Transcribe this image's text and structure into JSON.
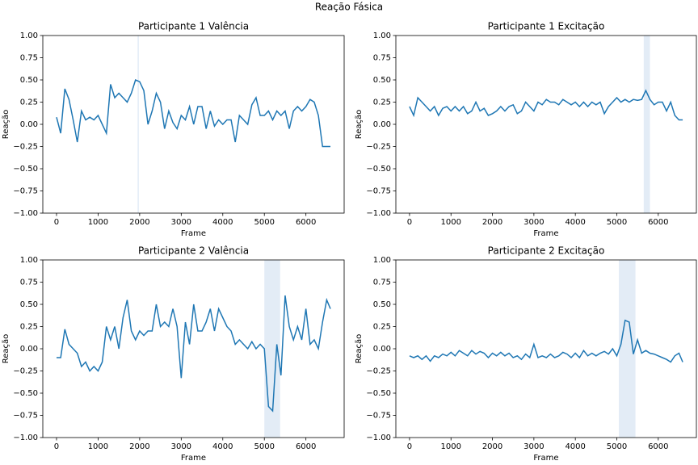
{
  "title": "Reação Fásica",
  "chart_data": [
    {
      "type": "line",
      "title": "Participante 1 Valência",
      "xlabel": "Frame",
      "ylabel": "Reação",
      "xlim": [
        -330,
        6920
      ],
      "xticks": [
        0,
        1000,
        2000,
        3000,
        4000,
        5000,
        6000
      ],
      "ylim": [
        -1,
        1
      ],
      "yticks": [
        {
          "value": -1,
          "label": "−1.00"
        },
        {
          "value": -0.75,
          "label": "−0.75"
        },
        {
          "value": -0.5,
          "label": "−0.50"
        },
        {
          "value": -0.25,
          "label": "−0.25"
        },
        {
          "value": 0,
          "label": "0.00"
        },
        {
          "value": 0.25,
          "label": "0.25"
        },
        {
          "value": 0.5,
          "label": "0.50"
        },
        {
          "value": 0.75,
          "label": "0.75"
        },
        {
          "value": 1,
          "label": "1.00"
        }
      ],
      "span": [
        1950,
        1980
      ],
      "span_color": "#e3ecf6",
      "color": "#1f77b4",
      "x": [
        0,
        100,
        200,
        300,
        400,
        500,
        600,
        700,
        800,
        900,
        1000,
        1100,
        1200,
        1300,
        1400,
        1500,
        1600,
        1700,
        1800,
        1900,
        2000,
        2100,
        2200,
        2300,
        2400,
        2500,
        2600,
        2700,
        2800,
        2900,
        3000,
        3100,
        3200,
        3300,
        3400,
        3500,
        3600,
        3700,
        3800,
        3900,
        4000,
        4100,
        4200,
        4300,
        4400,
        4500,
        4600,
        4700,
        4800,
        4900,
        5000,
        5100,
        5200,
        5300,
        5400,
        5500,
        5600,
        5700,
        5800,
        5900,
        6000,
        6100,
        6200,
        6300,
        6400,
        6500,
        6590
      ],
      "values": [
        0.08,
        -0.1,
        0.4,
        0.28,
        0.05,
        -0.2,
        0.15,
        0.05,
        0.08,
        0.05,
        0.1,
        0.0,
        -0.1,
        0.45,
        0.3,
        0.35,
        0.3,
        0.25,
        0.35,
        0.5,
        0.48,
        0.38,
        0.0,
        0.15,
        0.35,
        0.25,
        -0.05,
        0.15,
        0.02,
        -0.05,
        0.1,
        0.05,
        0.2,
        0.0,
        0.2,
        0.2,
        -0.05,
        0.15,
        -0.02,
        0.05,
        0.0,
        0.05,
        0.05,
        -0.2,
        0.1,
        0.05,
        0.0,
        0.22,
        0.3,
        0.1,
        0.1,
        0.15,
        0.05,
        0.15,
        0.1,
        0.15,
        -0.05,
        0.15,
        0.2,
        0.15,
        0.2,
        0.28,
        0.25,
        0.1,
        -0.25,
        -0.25,
        -0.25
      ]
    },
    {
      "type": "line",
      "title": "Participante 1 Excitação",
      "xlabel": "Frame",
      "ylabel": "Reação",
      "xlim": [
        -330,
        6920
      ],
      "xticks": [
        0,
        1000,
        2000,
        3000,
        4000,
        5000,
        6000
      ],
      "ylim": [
        -1,
        1
      ],
      "yticks": [
        {
          "value": -1,
          "label": "−1.00"
        },
        {
          "value": -0.75,
          "label": "−0.75"
        },
        {
          "value": -0.5,
          "label": "−0.50"
        },
        {
          "value": -0.25,
          "label": "−0.25"
        },
        {
          "value": 0,
          "label": "0.00"
        },
        {
          "value": 0.25,
          "label": "0.25"
        },
        {
          "value": 0.5,
          "label": "0.50"
        },
        {
          "value": 0.75,
          "label": "0.75"
        },
        {
          "value": 1,
          "label": "1.00"
        }
      ],
      "span": [
        5650,
        5800
      ],
      "span_color": "#e3ecf6",
      "color": "#1f77b4",
      "x": [
        0,
        100,
        200,
        300,
        400,
        500,
        600,
        700,
        800,
        900,
        1000,
        1100,
        1200,
        1300,
        1400,
        1500,
        1600,
        1700,
        1800,
        1900,
        2000,
        2100,
        2200,
        2300,
        2400,
        2500,
        2600,
        2700,
        2800,
        2900,
        3000,
        3100,
        3200,
        3300,
        3400,
        3500,
        3600,
        3700,
        3800,
        3900,
        4000,
        4100,
        4200,
        4300,
        4400,
        4500,
        4600,
        4700,
        4800,
        4900,
        5000,
        5100,
        5200,
        5300,
        5400,
        5500,
        5600,
        5700,
        5800,
        5900,
        6000,
        6100,
        6200,
        6300,
        6400,
        6500,
        6590
      ],
      "values": [
        0.2,
        0.1,
        0.3,
        0.25,
        0.2,
        0.15,
        0.2,
        0.1,
        0.18,
        0.2,
        0.15,
        0.2,
        0.15,
        0.2,
        0.12,
        0.15,
        0.25,
        0.15,
        0.18,
        0.1,
        0.12,
        0.15,
        0.2,
        0.15,
        0.2,
        0.22,
        0.12,
        0.15,
        0.25,
        0.2,
        0.15,
        0.25,
        0.22,
        0.28,
        0.25,
        0.25,
        0.22,
        0.28,
        0.25,
        0.22,
        0.25,
        0.2,
        0.25,
        0.2,
        0.25,
        0.22,
        0.25,
        0.12,
        0.2,
        0.25,
        0.3,
        0.25,
        0.28,
        0.25,
        0.28,
        0.27,
        0.28,
        0.38,
        0.28,
        0.22,
        0.25,
        0.25,
        0.15,
        0.25,
        0.1,
        0.05,
        0.05
      ]
    },
    {
      "type": "line",
      "title": "Participante 2 Valência",
      "xlabel": "Frame",
      "ylabel": "Reação",
      "xlim": [
        -330,
        6920
      ],
      "xticks": [
        0,
        1000,
        2000,
        3000,
        4000,
        5000,
        6000
      ],
      "ylim": [
        -1,
        1
      ],
      "yticks": [
        {
          "value": -1,
          "label": "−1.00"
        },
        {
          "value": -0.75,
          "label": "−0.75"
        },
        {
          "value": -0.5,
          "label": "−0.50"
        },
        {
          "value": -0.25,
          "label": "−0.25"
        },
        {
          "value": 0,
          "label": "0.00"
        },
        {
          "value": 0.25,
          "label": "0.25"
        },
        {
          "value": 0.5,
          "label": "0.50"
        },
        {
          "value": 0.75,
          "label": "0.75"
        },
        {
          "value": 1,
          "label": "1.00"
        }
      ],
      "span": [
        5000,
        5380
      ],
      "span_color": "#e3ecf6",
      "color": "#1f77b4",
      "x": [
        0,
        100,
        200,
        300,
        400,
        500,
        600,
        700,
        800,
        900,
        1000,
        1100,
        1200,
        1300,
        1400,
        1500,
        1600,
        1700,
        1800,
        1900,
        2000,
        2100,
        2200,
        2300,
        2400,
        2500,
        2600,
        2700,
        2800,
        2900,
        3000,
        3100,
        3200,
        3300,
        3400,
        3500,
        3600,
        3700,
        3800,
        3900,
        4000,
        4100,
        4200,
        4300,
        4400,
        4500,
        4600,
        4700,
        4800,
        4900,
        5000,
        5100,
        5200,
        5300,
        5400,
        5500,
        5600,
        5700,
        5800,
        5900,
        6000,
        6100,
        6200,
        6300,
        6400,
        6500,
        6590
      ],
      "values": [
        -0.1,
        -0.1,
        0.22,
        0.05,
        0.0,
        -0.05,
        -0.2,
        -0.15,
        -0.25,
        -0.2,
        -0.25,
        -0.15,
        0.25,
        0.1,
        0.25,
        0.0,
        0.35,
        0.55,
        0.2,
        0.1,
        0.2,
        0.15,
        0.2,
        0.2,
        0.5,
        0.25,
        0.3,
        0.25,
        0.45,
        0.25,
        -0.33,
        0.3,
        0.05,
        0.5,
        0.2,
        0.2,
        0.3,
        0.45,
        0.2,
        0.45,
        0.35,
        0.25,
        0.2,
        0.05,
        0.1,
        0.05,
        0.0,
        0.08,
        0.0,
        0.05,
        0.0,
        -0.65,
        -0.7,
        0.05,
        -0.3,
        0.6,
        0.25,
        0.1,
        0.25,
        0.1,
        0.45,
        0.05,
        0.1,
        0.0,
        0.3,
        0.55,
        0.45
      ]
    },
    {
      "type": "line",
      "title": "Participante 2 Excitação",
      "xlabel": "Frame",
      "ylabel": "Reação",
      "xlim": [
        -330,
        6920
      ],
      "xticks": [
        0,
        1000,
        2000,
        3000,
        4000,
        5000,
        6000
      ],
      "ylim": [
        -1,
        1
      ],
      "yticks": [
        {
          "value": -1,
          "label": "−1.00"
        },
        {
          "value": -0.75,
          "label": "−0.75"
        },
        {
          "value": -0.5,
          "label": "−0.50"
        },
        {
          "value": -0.25,
          "label": "−0.25"
        },
        {
          "value": 0,
          "label": "0.00"
        },
        {
          "value": 0.25,
          "label": "0.25"
        },
        {
          "value": 0.5,
          "label": "0.50"
        },
        {
          "value": 0.75,
          "label": "0.75"
        },
        {
          "value": 1,
          "label": "1.00"
        }
      ],
      "span": [
        5050,
        5450
      ],
      "span_color": "#e3ecf6",
      "color": "#1f77b4",
      "x": [
        0,
        100,
        200,
        300,
        400,
        500,
        600,
        700,
        800,
        900,
        1000,
        1100,
        1200,
        1300,
        1400,
        1500,
        1600,
        1700,
        1800,
        1900,
        2000,
        2100,
        2200,
        2300,
        2400,
        2500,
        2600,
        2700,
        2800,
        2900,
        3000,
        3100,
        3200,
        3300,
        3400,
        3500,
        3600,
        3700,
        3800,
        3900,
        4000,
        4100,
        4200,
        4300,
        4400,
        4500,
        4600,
        4700,
        4800,
        4900,
        5000,
        5100,
        5200,
        5300,
        5400,
        5500,
        5600,
        5700,
        5800,
        5900,
        6000,
        6100,
        6200,
        6300,
        6400,
        6500,
        6590
      ],
      "values": [
        -0.08,
        -0.1,
        -0.08,
        -0.12,
        -0.08,
        -0.14,
        -0.08,
        -0.1,
        -0.06,
        -0.08,
        -0.04,
        -0.08,
        -0.02,
        -0.05,
        -0.08,
        -0.02,
        -0.06,
        -0.03,
        -0.05,
        -0.1,
        -0.05,
        -0.08,
        -0.04,
        -0.08,
        -0.05,
        -0.1,
        -0.08,
        -0.12,
        -0.06,
        -0.1,
        0.05,
        -0.1,
        -0.08,
        -0.1,
        -0.06,
        -0.1,
        -0.08,
        -0.04,
        -0.06,
        -0.1,
        -0.05,
        -0.1,
        -0.02,
        -0.08,
        -0.05,
        -0.08,
        -0.05,
        -0.03,
        -0.06,
        0.0,
        -0.08,
        0.05,
        0.32,
        0.3,
        -0.06,
        0.1,
        -0.05,
        -0.02,
        -0.05,
        -0.06,
        -0.08,
        -0.1,
        -0.12,
        -0.15,
        -0.08,
        -0.05,
        -0.15
      ]
    }
  ]
}
